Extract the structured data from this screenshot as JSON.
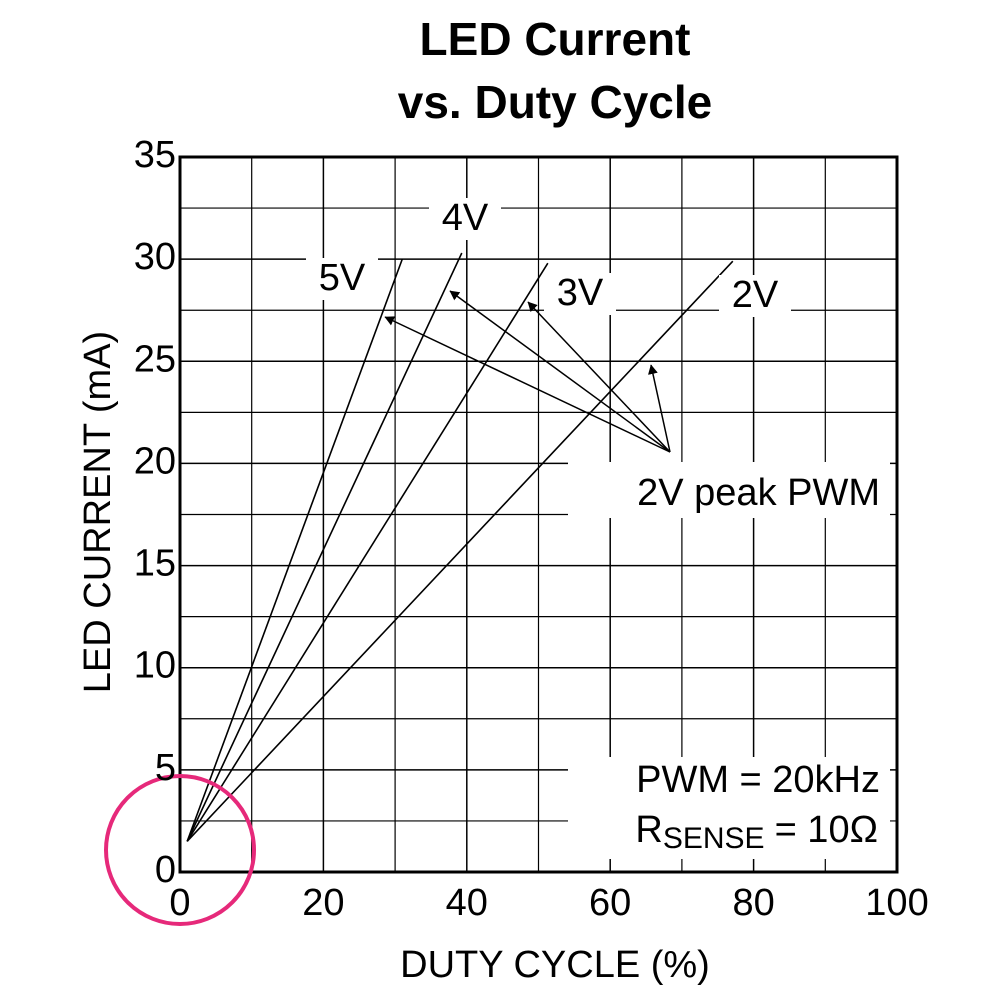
{
  "chart_data": {
    "type": "line",
    "title": [
      "LED Current",
      "vs. Duty Cycle"
    ],
    "x_label": "DUTY CYCLE (%)",
    "y_label": "LED CURRENT (mA)",
    "xlim": [
      0,
      100
    ],
    "xticks": [
      0,
      20,
      40,
      60,
      80,
      100
    ],
    "ylim": [
      0,
      35
    ],
    "yticks": [
      0,
      5,
      10,
      15,
      20,
      25,
      30,
      35
    ],
    "grid": true,
    "series": [
      {
        "name": "5V",
        "color": "#000000",
        "x": [
          1,
          31
        ],
        "values": [
          1.5,
          30
        ]
      },
      {
        "name": "4V",
        "color": "#000000",
        "x": [
          1,
          39.3
        ],
        "values": [
          1.5,
          30.3
        ]
      },
      {
        "name": "3V",
        "color": "#000000",
        "x": [
          1,
          51.3
        ],
        "values": [
          1.5,
          29.8
        ]
      },
      {
        "name": "2V",
        "color": "#000000",
        "x": [
          1,
          77.1
        ],
        "values": [
          1.5,
          29.9
        ]
      }
    ],
    "annotations": [
      "2V peak PWM",
      "PWM = 20kHz"
    ],
    "sense_label": {
      "main": "R",
      "sub": "SENSE",
      "rest": "= 10Ω"
    }
  }
}
